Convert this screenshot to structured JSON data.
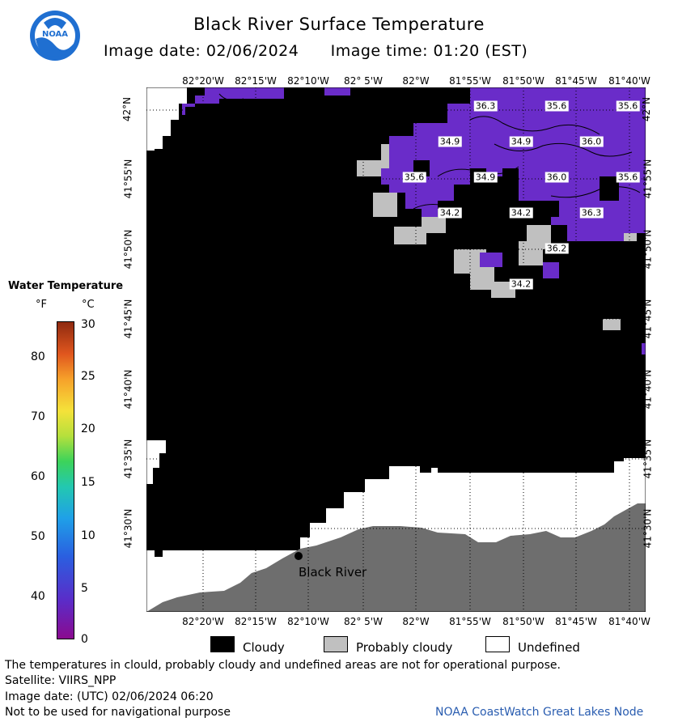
{
  "header": {
    "title": "Black River Surface Temperature",
    "image_date_label": "Image date: 02/06/2024",
    "image_time_label": "Image time: 01:20 (EST)",
    "logo_text": "NOAA"
  },
  "axes": {
    "longitude_ticks": [
      "82°20'W",
      "82°15'W",
      "82°10'W",
      "82° 5'W",
      "82°W",
      "81°55'W",
      "81°50'W",
      "81°45'W",
      "81°40'W"
    ],
    "latitude_ticks": [
      "42°N",
      "41°55'N",
      "41°50'N",
      "41°45'N",
      "41°40'N",
      "41°35'N",
      "41°30'N"
    ]
  },
  "map": {
    "temperature_labels": [
      "36.3",
      "35.6",
      "35.6",
      "34.9",
      "34.9",
      "36.0",
      "35.6",
      "34.9",
      "36.0",
      "35.6",
      "34.2",
      "34.2",
      "36.3",
      "36.2",
      "34.2"
    ],
    "place_label": "Black River",
    "colors": {
      "cloudy": "#000000",
      "probably_cloudy": "#c0c0c0",
      "undefined": "#ffffff",
      "land": "#6e6e6e",
      "water_cold": "#6a2cc9"
    }
  },
  "legend": {
    "title": "Water Temperature",
    "unit_f": "°F",
    "unit_c": "°C",
    "fahrenheit_ticks": [
      "80",
      "70",
      "60",
      "50",
      "40"
    ],
    "celsius_ticks": [
      "30",
      "25",
      "20",
      "15",
      "10",
      "5",
      "0"
    ],
    "key": [
      {
        "label": "Cloudy",
        "color": "#000000"
      },
      {
        "label": "Probably cloudy",
        "color": "#c0c0c0"
      },
      {
        "label": "Undefined",
        "color": "#ffffff"
      }
    ]
  },
  "footer": {
    "disclaimer": "The temperatures in clould, probably cloudy and undefined areas are not for operational purpose.",
    "satellite": "Satellite: VIIRS_NPP",
    "utc_date": "Image date: (UTC) 02/06/2024  06:20",
    "nav_warning": "Not to be used for navigational purpose",
    "credit": "NOAA CoastWatch Great Lakes Node"
  }
}
